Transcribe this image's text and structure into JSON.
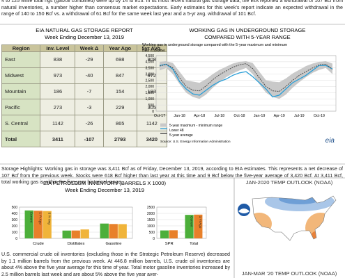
{
  "intro_text": "4 to 125 while total rigs (gas/oil combined) were up by 14 to 813. In its most recent natural gas storage data, the EIA reported a withdrawal of 107 Bcf from natural inventories, a number higher than consensus market expectations. Early estimates for this week's report indicate an expected withdrawal in the range of 140 to 150 Bcf vs. a withdrawal of 61 Bcf for the same week last year and a 5-yr avg. withdrawal of 101 Bcf.",
  "storage_table": {
    "title": "EIA NATURAL GAS STORAGE REPORT",
    "subtitle": "Week Ending December 13, 2019",
    "header": [
      "Region",
      "Inv. Level",
      "Week Δ",
      "Year Ago",
      "5yr Avg."
    ],
    "rows": [
      [
        "East",
        838,
        -29,
        698,
        808
      ],
      [
        "Midwest",
        973,
        -40,
        847,
        972
      ],
      [
        "Mountain",
        186,
        -7,
        154,
        193
      ],
      [
        "Pacific",
        273,
        -3,
        229,
        305
      ],
      [
        "S. Central",
        1142,
        -26,
        865,
        1142
      ],
      [
        "Total",
        3411,
        -107,
        2793,
        3420
      ]
    ]
  },
  "storage_highlights": "Storage Highlights: Working gas in storage was 3,411 Bcf as of Friday, December 13, 2019, according to EIA estimates. This represents a net decrease of 107 Bcf from the previous week. Stocks were 618 Bcf higher than last year at this time and 9 Bcf below the five-year average of 3,420 Bcf. At 3,411 Bcf, total working gas is within the five-year historical range.",
  "petroleum_text": "U.S. commercial crude oil inventories (excluding those in the Strategic Petroleum Reserve) decreased by 1.1 million barrels from the previous week. At 446.8 million barrels, U.S. crude oil inventories are about 4% above the five year average for this time of year. Total motor gasoline inventories increased by 2.5 million barrels last week and are about 5% above the five year aver-",
  "maps": [
    {
      "title": "JAN-2020 TEMP OUTLOOK (NOAA)"
    },
    {
      "title": "JAN-MAR '20 TEMP OUTLOOK (NOAA)"
    }
  ],
  "chart_data": [
    {
      "type": "line",
      "title": "WORKING GAS IN UNDERGROUND STORAGE",
      "subtitle": "COMPARED WITH 5-YEAR RANGE",
      "note": "Working gas in underground storage compared with the 5-year maximum and minimum",
      "y_label": "billion cubic feet",
      "source": "Source: U.S. Energy Information Administration",
      "logo": "eia",
      "categories": [
        "Oct-17",
        null,
        null,
        "Jan-18",
        null,
        null,
        "Apr-18",
        null,
        null,
        "Jul-18",
        null,
        null,
        "Oct-18",
        null,
        null,
        "Jan-19",
        null,
        null,
        "Apr-19",
        null,
        null,
        "Jul-19",
        null,
        null,
        "Oct-19",
        null,
        null
      ],
      "ylim": [
        0,
        4500
      ],
      "yticks": [
        0,
        500,
        {
          "value": 1000,
          "label": "1,000"
        },
        {
          "value": 1500,
          "label": "1,500"
        },
        {
          "value": 2000,
          "label": "2,000"
        },
        {
          "value": 2500,
          "label": "2,500"
        },
        {
          "value": 3000,
          "label": "3,000"
        },
        {
          "value": 3500,
          "label": "3,500"
        },
        {
          "value": 4000,
          "label": "4,000"
        },
        {
          "value": 4500,
          "label": "4,500"
        }
      ],
      "grid": true,
      "series": [
        {
          "name": "5-year maximum - minimum range",
          "color": "#c9c9c9",
          "max": [
            4000,
            4050,
            3900,
            3200,
            2500,
            2400,
            2300,
            2600,
            3000,
            3350,
            3600,
            3850,
            4000,
            4050,
            3900,
            3200,
            2500,
            2400,
            2350,
            2650,
            3050,
            3350,
            3650,
            3850,
            4000,
            4050,
            3850
          ],
          "min": [
            3300,
            3500,
            3000,
            2200,
            1500,
            1150,
            1000,
            1350,
            1900,
            2350,
            2750,
            3050,
            3300,
            3500,
            3000,
            2200,
            1500,
            1150,
            1000,
            1350,
            1900,
            2350,
            2750,
            3100,
            3350,
            3500,
            3000
          ]
        },
        {
          "name": "Lower 48",
          "color": "#2a9fd8",
          "values": [
            3700,
            3800,
            3400,
            2400,
            1800,
            1400,
            1300,
            1700,
            2100,
            2400,
            2600,
            2900,
            3100,
            3200,
            2800,
            2300,
            1800,
            1150,
            1300,
            1800,
            2300,
            2600,
            2900,
            3300,
            3700,
            3700,
            3411
          ]
        },
        {
          "name": "5-year average",
          "color": "#4d4d4d",
          "values": [
            3650,
            3800,
            3500,
            2700,
            2000,
            1700,
            1650,
            2050,
            2550,
            2950,
            3250,
            3550,
            3750,
            3850,
            3450,
            2700,
            2000,
            1650,
            1600,
            2000,
            2500,
            2900,
            3200,
            3500,
            3750,
            3800,
            3400
          ]
        }
      ]
    },
    {
      "type": "bar",
      "title": "EIA PETROLEUM INVENTORY (BARRELS X 1000)",
      "subtitle": "Week Ending December 13, 2019",
      "categories": [
        "Crude",
        "Distillates",
        "Gasoline"
      ],
      "ylim": [
        0,
        500
      ],
      "yticks": [
        0,
        100,
        200,
        300,
        400,
        500
      ],
      "grid": true,
      "series": [
        {
          "name": "Current",
          "color": "#4caf3a",
          "values": [
            447,
            125,
            237
          ]
        },
        {
          "name": "1 Yr Ago",
          "color": "#e8802a",
          "values": [
            442,
            126,
            230
          ]
        },
        {
          "name": "5 Yr Avg",
          "color": "#f0b43a",
          "values": [
            437,
            143,
            228
          ]
        }
      ]
    },
    {
      "type": "bar",
      "categories": [
        "SPR",
        "Total"
      ],
      "ylim": [
        0,
        2500
      ],
      "yticks": [
        0,
        500,
        1000,
        1500,
        2000,
        2500
      ],
      "grid": true,
      "series": [
        {
          "name": "Current",
          "color": "#4caf3a",
          "values": [
            635,
            1880
          ]
        },
        {
          "name": "1 Yr Ago",
          "color": "#e8802a",
          "values": [
            649,
            1900
          ]
        }
      ]
    }
  ]
}
